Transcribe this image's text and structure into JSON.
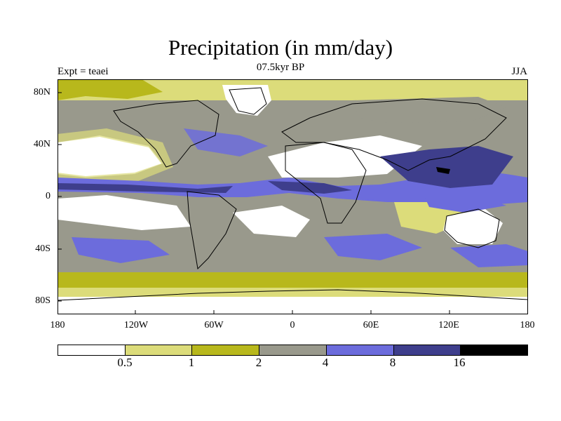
{
  "title": "Precipitation (in mm/day)",
  "subtitle": "07.5kyr BP",
  "left_label": "Expt = teaei",
  "right_label": "JJA",
  "lat_labels": [
    "80N",
    "40N",
    "0",
    "40S",
    "80S"
  ],
  "lon_labels": [
    "180",
    "120W",
    "60W",
    "0",
    "60E",
    "120E",
    "180"
  ],
  "colorbar": {
    "colors": [
      "#ffffff",
      "#dcdc7a",
      "#b8b81c",
      "#99998c",
      "#6c6cdc",
      "#3e3e8c",
      "#000000"
    ],
    "labels": [
      "0.5",
      "1",
      "2",
      "4",
      "8",
      "16"
    ]
  },
  "chart_data": {
    "type": "heatmap",
    "title": "Precipitation (in mm/day)",
    "subtitle": "07.5kyr BP",
    "experiment": "teaei",
    "season": "JJA",
    "units": "mm/day",
    "levels": [
      0.5,
      1,
      2,
      4,
      8,
      16
    ],
    "lat_range": [
      -90,
      90
    ],
    "lon_range": [
      -180,
      180
    ]
  }
}
